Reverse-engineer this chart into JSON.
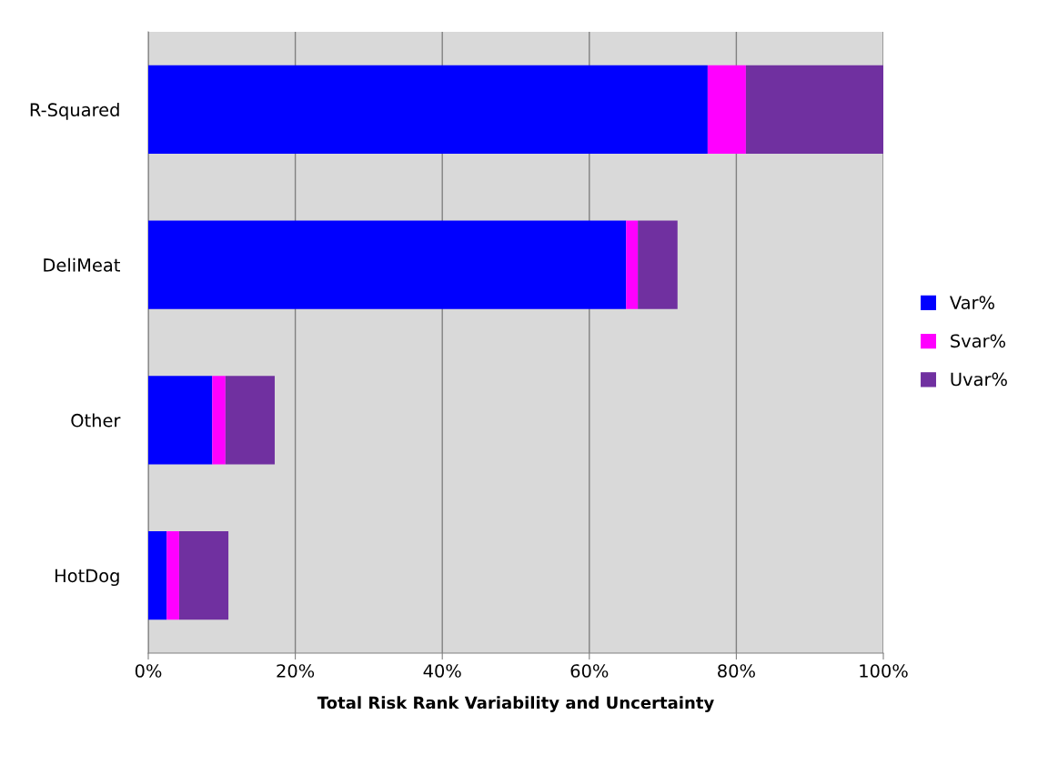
{
  "chart_data": {
    "type": "bar",
    "orientation": "horizontal",
    "stacked": true,
    "categories": [
      "R-Squared",
      "DeliMeat",
      "Other",
      "HotDog"
    ],
    "series": [
      {
        "name": "Var%",
        "color": "#0000ff",
        "values": [
          76.1,
          65.0,
          8.7,
          2.5
        ]
      },
      {
        "name": "Svar%",
        "color": "#ff00ff",
        "values": [
          5.2,
          1.6,
          1.8,
          1.7
        ]
      },
      {
        "name": "Uvar%",
        "color": "#7030a0",
        "values": [
          18.7,
          5.4,
          6.7,
          6.7
        ]
      }
    ],
    "xlim": [
      0,
      100
    ],
    "xticks": [
      {
        "value": 0,
        "label": "0%"
      },
      {
        "value": 20,
        "label": "20%"
      },
      {
        "value": 40,
        "label": "40%"
      },
      {
        "value": 60,
        "label": "60%"
      },
      {
        "value": 80,
        "label": "80%"
      },
      {
        "value": 100,
        "label": "100%"
      }
    ],
    "xlabel": "Total Risk Rank Variability and Uncertainty",
    "grid": "x",
    "legend": "right"
  }
}
